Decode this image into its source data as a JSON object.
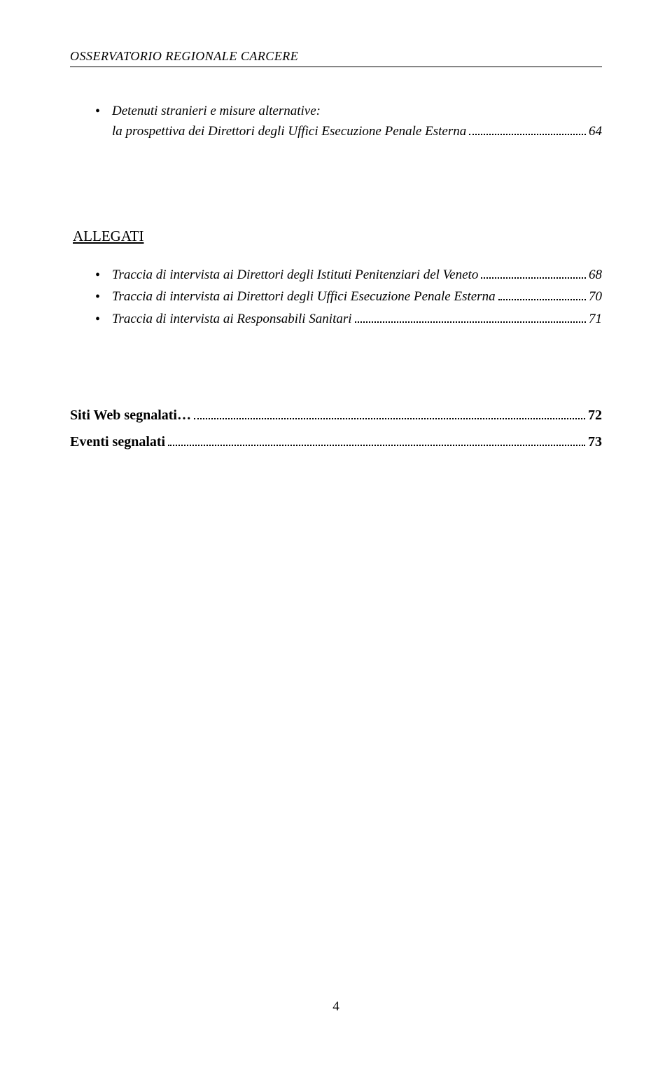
{
  "header": "OSSERVATORIO REGIONALE CARCERE",
  "top_items": [
    {
      "line1": "Detenuti stranieri e misure alternative:",
      "line2": "la prospettiva dei Direttori degli Uffici Esecuzione Penale Esterna",
      "page": "64"
    }
  ],
  "allegati_heading": "ALLEGATI",
  "allegati_items": [
    {
      "text": "Traccia di intervista ai Direttori degli Istituti Penitenziari del Veneto",
      "page": "68"
    },
    {
      "text": "Traccia di intervista ai Direttori degli Uffici Esecuzione Penale Esterna",
      "page": "70"
    },
    {
      "text": "Traccia di intervista ai Responsabili Sanitari",
      "page": "71"
    }
  ],
  "bottom_lines": [
    {
      "text": "Siti Web segnalati…",
      "page": "72"
    },
    {
      "text": "Eventi segnalati",
      "page": "73"
    }
  ],
  "page_number": "4"
}
